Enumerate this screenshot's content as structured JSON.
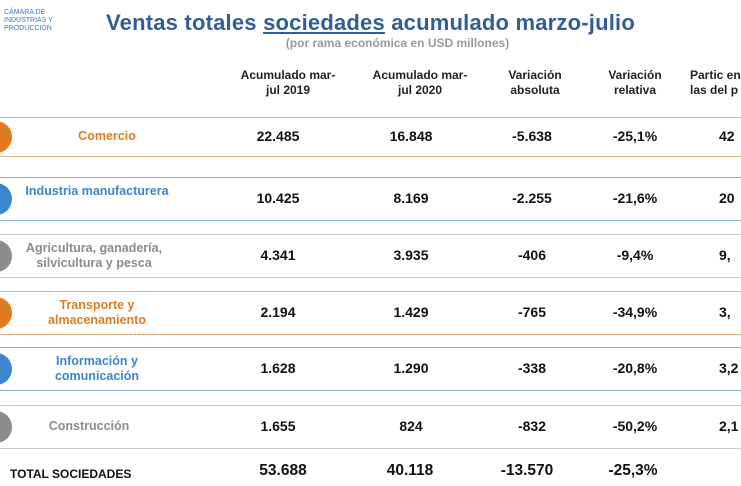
{
  "logo": {
    "line1": "CÁMARA DE",
    "line2": "INDUSTRIAS Y",
    "line3": "PRODUCCIÓN"
  },
  "title": {
    "before": "Ventas totales ",
    "underlined": "sociedades",
    "after": " acumulado marzo-julio"
  },
  "subtitle": "(por rama económica en USD millones)",
  "headers": {
    "col1": "Acumulado mar-jul 2019",
    "col2": "Acumulado mar-jul 2020",
    "col3": "Variación absoluta",
    "col4": "Variación relativa",
    "col5": "Partic en las del p"
  },
  "rows": [
    {
      "label": "Comercio",
      "v2019": "22.485",
      "v2020": "16.848",
      "abs": "-5.638",
      "rel": "-25,1%",
      "part": "42",
      "color": "#e07b24"
    },
    {
      "label": "Industria manufacturera",
      "v2019": "10.425",
      "v2020": "8.169",
      "abs": "-2.255",
      "rel": "-21,6%",
      "part": "20",
      "color": "#3b86cf"
    },
    {
      "label": "Agricultura, ganadería, silvicultura y pesca",
      "v2019": "4.341",
      "v2020": "3.935",
      "abs": "-406",
      "rel": "-9,4%",
      "part": "9,",
      "color": "#8c8c8c"
    },
    {
      "label": "Transporte y almacenamiento",
      "v2019": "2.194",
      "v2020": "1.429",
      "abs": "-765",
      "rel": "-34,9%",
      "part": "3,",
      "color": "#e07b24"
    },
    {
      "label": "Información y comunicación",
      "v2019": "1.628",
      "v2020": "1.290",
      "abs": "-338",
      "rel": "-20,8%",
      "part": "3,2",
      "color": "#3b86cf"
    },
    {
      "label": "Construcción",
      "v2019": "1.655",
      "v2020": "824",
      "abs": "-832",
      "rel": "-50,2%",
      "part": "2,1",
      "color": "#8c8c8c"
    }
  ],
  "total": {
    "label": "TOTAL SOCIEDADES",
    "v2019": "53.688",
    "v2020": "40.118",
    "abs": "-13.570",
    "rel": "-25,3%"
  }
}
